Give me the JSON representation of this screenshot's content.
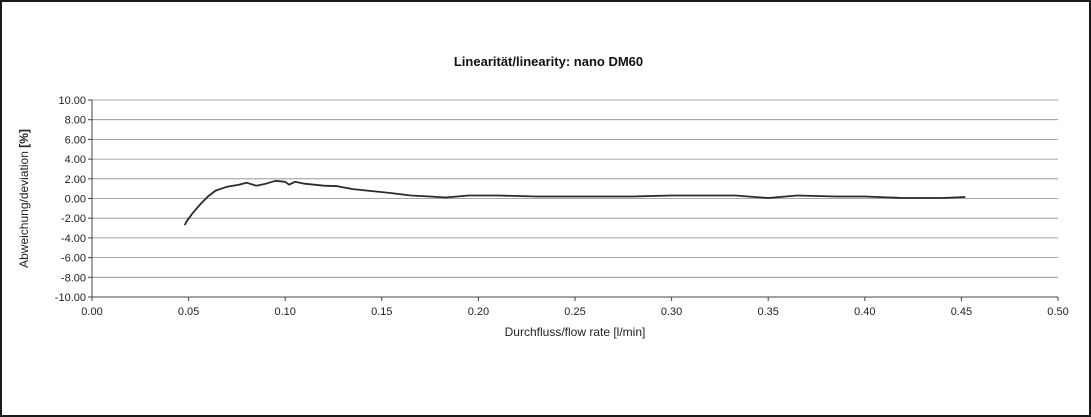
{
  "chart_data": {
    "type": "line",
    "title": "Linearität/linearity: nano DM60",
    "xlabel": "Durchfluss/flow rate [l/min]",
    "ylabel_main": "Abweichung/deviation ",
    "ylabel_unit": "[%]",
    "xlim": [
      0.0,
      0.5
    ],
    "ylim": [
      -10.0,
      10.0
    ],
    "x_ticks": [
      "0.00",
      "0.05",
      "0.10",
      "0.15",
      "0.20",
      "0.25",
      "0.30",
      "0.35",
      "0.40",
      "0.45",
      "0.50"
    ],
    "y_ticks": [
      "10.00",
      "8.00",
      "6.00",
      "4.00",
      "2.00",
      "0.00",
      "-2.00",
      "-4.00",
      "-6.00",
      "-8.00",
      "-10.00"
    ],
    "grid": true,
    "line_color": "#2b2b2b",
    "series": [
      {
        "x": [
          0.048,
          0.049,
          0.052,
          0.056,
          0.06,
          0.064,
          0.07,
          0.076,
          0.08,
          0.085,
          0.09,
          0.095,
          0.1,
          0.102,
          0.105,
          0.11,
          0.115,
          0.12,
          0.127,
          0.135,
          0.145,
          0.155,
          0.165,
          0.175,
          0.183,
          0.195,
          0.21,
          0.23,
          0.25,
          0.28,
          0.3,
          0.315,
          0.333,
          0.35,
          0.365,
          0.385,
          0.4,
          0.42,
          0.44,
          0.452
        ],
        "y": [
          -2.7,
          -2.3,
          -1.5,
          -0.6,
          0.2,
          0.8,
          1.2,
          1.4,
          1.6,
          1.3,
          1.5,
          1.8,
          1.7,
          1.4,
          1.7,
          1.5,
          1.4,
          1.3,
          1.25,
          0.95,
          0.75,
          0.55,
          0.3,
          0.2,
          0.1,
          0.3,
          0.3,
          0.2,
          0.2,
          0.2,
          0.3,
          0.3,
          0.3,
          0.05,
          0.3,
          0.2,
          0.2,
          0.05,
          0.05,
          0.15
        ]
      }
    ]
  }
}
